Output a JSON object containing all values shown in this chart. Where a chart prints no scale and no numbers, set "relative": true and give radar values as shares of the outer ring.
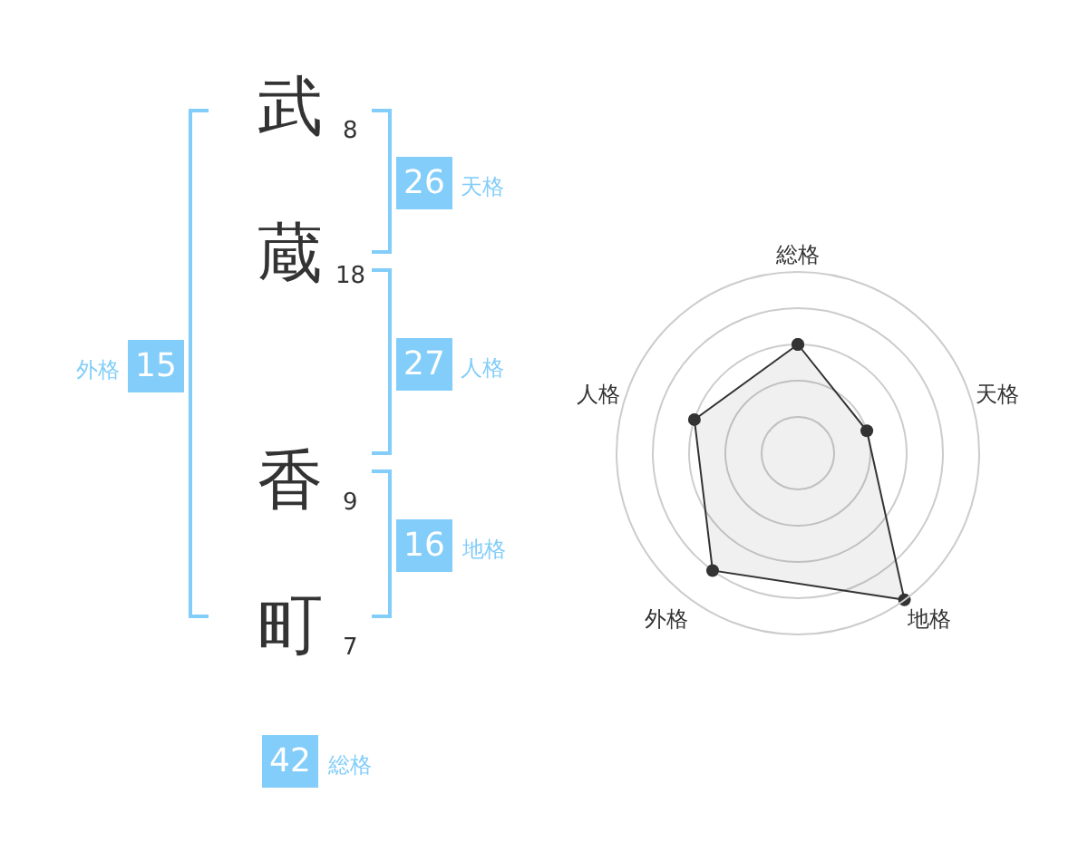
{
  "chart_data": [
    {
      "type": "other",
      "categories": [
        "武",
        "蔵",
        "香",
        "町"
      ],
      "values": [
        8,
        18,
        9,
        7
      ],
      "data_labels": true,
      "color": "#82cdf9",
      "annotations": [
        "26",
        "天格",
        "27",
        "人格",
        "16",
        "地格",
        "15",
        "外格",
        "42",
        "総格"
      ]
    },
    {
      "type": "radar",
      "categories": [
        "総格",
        "天格",
        "地格",
        "外格",
        "人格"
      ],
      "relative": true,
      "grid": true,
      "marker": "circle",
      "series": [
        {
          "color": "#333333",
          "values": [
            0.6,
            0.4,
            1.0,
            0.8,
            0.6
          ]
        }
      ]
    }
  ]
}
